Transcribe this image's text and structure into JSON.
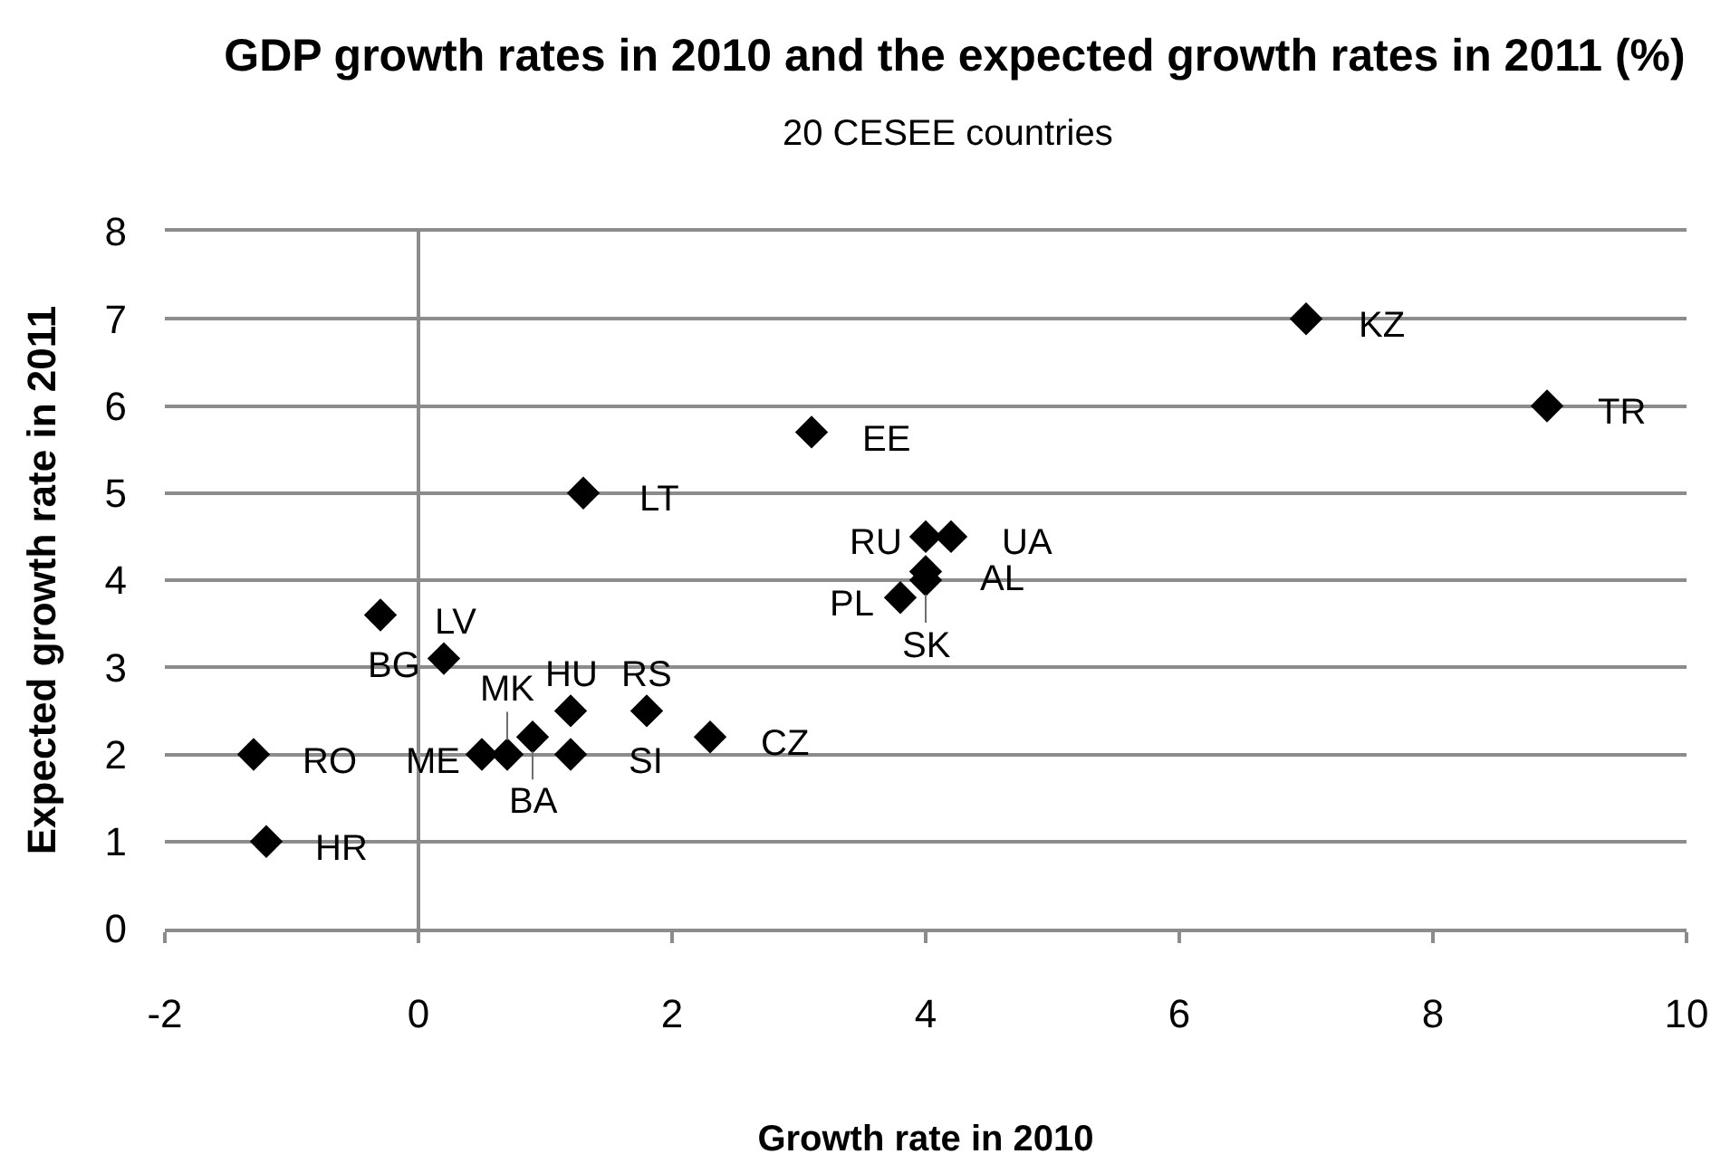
{
  "chart_data": {
    "type": "scatter",
    "title": "GDP growth rates in 2010 and the expected growth rates in 2011 (%)",
    "subtitle": "20 CESEE countries",
    "xlabel": "Growth rate in 2010",
    "ylabel": "Expected growth rate in 2011",
    "xlim": [
      -2,
      10
    ],
    "xticks": [
      -2,
      0,
      2,
      4,
      6,
      8,
      10
    ],
    "ylim": [
      0,
      8
    ],
    "yticks": [
      0,
      1,
      2,
      3,
      4,
      5,
      6,
      7,
      8
    ],
    "grid": "y",
    "marker": "diamond",
    "ref_lines": [
      {
        "axis": "x",
        "value": 0,
        "color": "#8c8c8c"
      }
    ],
    "series": [
      {
        "color": "#000000",
        "x": [
          7.0,
          8.9,
          3.1,
          1.3,
          4.0,
          4.2,
          4.0,
          4.0,
          3.8,
          -0.3,
          0.2,
          1.2,
          1.8,
          0.9,
          2.3,
          0.5,
          0.7,
          1.2,
          -1.3,
          -1.2
        ],
        "values": [
          7.0,
          6.0,
          5.7,
          5.0,
          4.5,
          4.5,
          4.1,
          4.0,
          3.8,
          3.6,
          3.1,
          2.5,
          2.5,
          2.2,
          2.2,
          2.0,
          2.0,
          2.0,
          2.0,
          1.0
        ],
        "value_labels": [
          "KZ",
          "TR",
          "EE",
          "LT",
          "RU",
          "UA",
          "AL",
          "SK",
          "PL",
          "LV",
          "BG",
          "HU",
          "RS",
          "BA",
          "CZ",
          "ME",
          "MK",
          "SI",
          "RO",
          "HR"
        ]
      }
    ]
  }
}
